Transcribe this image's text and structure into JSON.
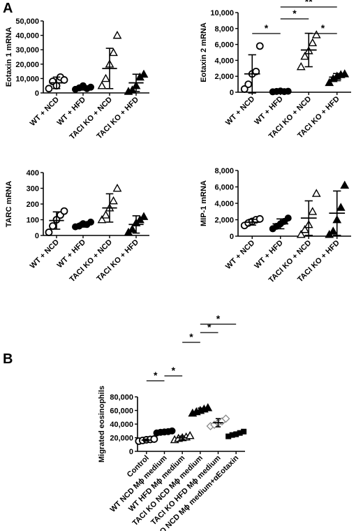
{
  "panel_labels": [
    "A",
    "B"
  ],
  "chart_data": [
    {
      "type": "scatter",
      "subtype": "dot-plot-mean-sd",
      "panel": "A",
      "title": "",
      "ylabel": "Eotaxin 1 mRNA",
      "ylim": [
        0,
        50000
      ],
      "yticks": [
        0,
        10000,
        20000,
        30000,
        40000,
        50000
      ],
      "ytick_labels": [
        "0",
        "10,000",
        "20,000",
        "30,000",
        "40,000",
        "50,000"
      ],
      "categories": [
        "WT + NCD",
        "WT + HFD",
        "TACI KO + NCD",
        "TACI KO + HFD"
      ],
      "markers": [
        "open-circle",
        "filled-circle",
        "open-triangle",
        "filled-triangle"
      ],
      "points": [
        [
          3000,
          8000,
          5000,
          11000,
          9000
        ],
        [
          2500,
          3500,
          5000,
          3000,
          4000
        ],
        [
          5000,
          10000,
          20000,
          28000,
          40000
        ],
        [
          1000,
          2000,
          5000,
          11000,
          13000
        ]
      ],
      "mean": [
        7000,
        3500,
        17000,
        7000
      ],
      "sd": [
        4000,
        1500,
        14000,
        6000
      ],
      "significance": []
    },
    {
      "type": "scatter",
      "subtype": "dot-plot-mean-sd",
      "panel": "A",
      "title": "",
      "ylabel": "Eotaxin 2 mRNA",
      "ylim": [
        0,
        10000
      ],
      "yticks": [
        0,
        2000,
        4000,
        6000,
        8000,
        10000
      ],
      "ytick_labels": [
        "0",
        "2,000",
        "4,000",
        "6,000",
        "8,000",
        "10,000"
      ],
      "categories": [
        "WT + NCD",
        "WT + HFD",
        "TACI KO + NCD",
        "TACI KO + HFD"
      ],
      "markers": [
        "open-circle",
        "filled-circle",
        "open-triangle",
        "filled-triangle"
      ],
      "points": [
        [
          400,
          1000,
          2300,
          2600,
          5800
        ],
        [
          50,
          100,
          150,
          80,
          120
        ],
        [
          3200,
          4500,
          5200,
          6200,
          7200
        ],
        [
          1200,
          1700,
          2000,
          2200,
          2300
        ]
      ],
      "mean": [
        2300,
        100,
        5300,
        1900
      ],
      "sd": [
        2400,
        60,
        2100,
        450
      ],
      "significance": [
        {
          "from": 0,
          "to": 1,
          "label": "*",
          "level": 0
        },
        {
          "from": 1,
          "to": 2,
          "label": "*",
          "level": 1
        },
        {
          "from": 2,
          "to": 3,
          "label": "*",
          "level": 0
        },
        {
          "from": 1,
          "to": 3,
          "label": "**",
          "level": 2
        }
      ]
    },
    {
      "type": "scatter",
      "subtype": "dot-plot-mean-sd",
      "panel": "A",
      "title": "",
      "ylabel": "TARC mRNA",
      "ylim": [
        0,
        400
      ],
      "yticks": [
        0,
        100,
        200,
        300,
        400
      ],
      "ytick_labels": [
        "0",
        "100",
        "200",
        "300",
        "400"
      ],
      "categories": [
        "WT + NCD",
        "WT + HFD",
        "TACI KO + NCD",
        "TACI KO + HFD"
      ],
      "markers": [
        "open-circle",
        "filled-circle",
        "open-triangle",
        "filled-triangle"
      ],
      "points": [
        [
          20,
          60,
          100,
          130,
          155
        ],
        [
          55,
          60,
          75,
          70,
          85
        ],
        [
          100,
          130,
          175,
          220,
          300
        ],
        [
          20,
          40,
          80,
          100,
          120
        ]
      ],
      "mean": [
        95,
        68,
        175,
        70
      ],
      "sd": [
        55,
        15,
        90,
        55
      ],
      "significance": []
    },
    {
      "type": "scatter",
      "subtype": "dot-plot-mean-sd",
      "panel": "A",
      "title": "",
      "ylabel": "MIP-1 mRNA",
      "ylim": [
        0,
        8000
      ],
      "yticks": [
        0,
        2000,
        4000,
        6000,
        8000
      ],
      "ytick_labels": [
        "0",
        "2,000",
        "4,000",
        "6,000",
        "8,000"
      ],
      "categories": [
        "WT + NCD",
        "WT + HFD",
        "TACI KO + NCD",
        "TACI KO + HFD"
      ],
      "markers": [
        "open-circle",
        "filled-circle",
        "open-triangle",
        "filled-triangle"
      ],
      "points": [
        [
          1300,
          1600,
          1800,
          2000,
          2100
        ],
        [
          900,
          1200,
          1500,
          1800,
          2200
        ],
        [
          200,
          800,
          1400,
          3000,
          5200
        ],
        [
          200,
          600,
          2000,
          3500,
          6200
        ]
      ],
      "mean": [
        1700,
        1500,
        2200,
        2800
      ],
      "sd": [
        350,
        600,
        2100,
        2700
      ],
      "significance": []
    },
    {
      "type": "scatter",
      "subtype": "dot-plot-mean-sd",
      "panel": "B",
      "title": "",
      "ylabel": "Migrated eosinophils",
      "ylim": [
        0,
        80000
      ],
      "yticks": [
        0,
        20000,
        40000,
        60000,
        80000
      ],
      "ytick_labels": [
        "0",
        "20,000",
        "40,000",
        "60,000",
        "80,000"
      ],
      "categories": [
        "Control",
        "WT NCD Mϕ medium",
        "WT HFD Mϕ medium",
        "TACI KO NCD Mϕ medium",
        "TACI  KO HFD Mϕ medium",
        "TACI KO NCD Mϕ medium+αEotaxin"
      ],
      "markers": [
        "open-circle",
        "filled-circle",
        "open-triangle",
        "filled-triangle",
        "open-diamond",
        "filled-square"
      ],
      "points": [
        [
          15000,
          16000,
          17000,
          17500,
          18000
        ],
        [
          27000,
          28000,
          28500,
          29000,
          30000
        ],
        [
          17000,
          19000,
          20000,
          21000,
          23000
        ],
        [
          56000,
          58000,
          60000,
          62000,
          64000
        ],
        [
          37000,
          39000,
          42000,
          44000,
          48000
        ],
        [
          22000,
          24000,
          25000,
          27000,
          29000
        ]
      ],
      "mean": [
        16500,
        28500,
        20000,
        60000,
        42000,
        25500
      ],
      "sd": [
        1500,
        1000,
        2500,
        3500,
        6000,
        3000
      ],
      "significance": [
        {
          "from": 0,
          "to": 1,
          "label": "*",
          "level": 0
        },
        {
          "from": 1,
          "to": 2,
          "label": "*",
          "level": 1
        },
        {
          "from": 2,
          "to": 3,
          "label": "*",
          "level": 2
        },
        {
          "from": 3,
          "to": 4,
          "label": "*",
          "level": 3
        },
        {
          "from": 3,
          "to": 5,
          "label": "*",
          "level": 4
        }
      ]
    }
  ]
}
